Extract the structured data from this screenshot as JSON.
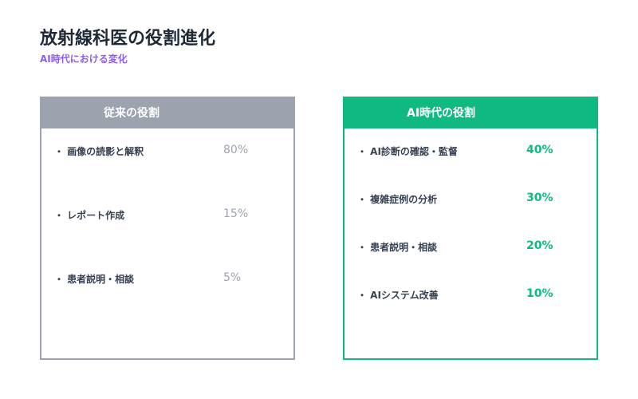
{
  "title": "放射線科医の役割進化",
  "subtitle": "AI時代における変化",
  "colors": {
    "traditional": "#9ca3af",
    "ai": "#10b981",
    "subtitle": "#8b5cf6"
  },
  "traditional": {
    "header": "従来の役割",
    "items": [
      {
        "label": "・ 画像の読影と解釈",
        "value": "80%"
      },
      {
        "label": "・ レポート作成",
        "value": "15%"
      },
      {
        "label": "・ 患者説明・相談",
        "value": "5%"
      }
    ]
  },
  "ai": {
    "header": "AI時代の役割",
    "items": [
      {
        "label": "・ AI診断の確認・監督",
        "value": "40%"
      },
      {
        "label": "・ 複雑症例の分析",
        "value": "30%"
      },
      {
        "label": "・ 患者説明・相談",
        "value": "20%"
      },
      {
        "label": "・ AIシステム改善",
        "value": "10%"
      }
    ]
  }
}
